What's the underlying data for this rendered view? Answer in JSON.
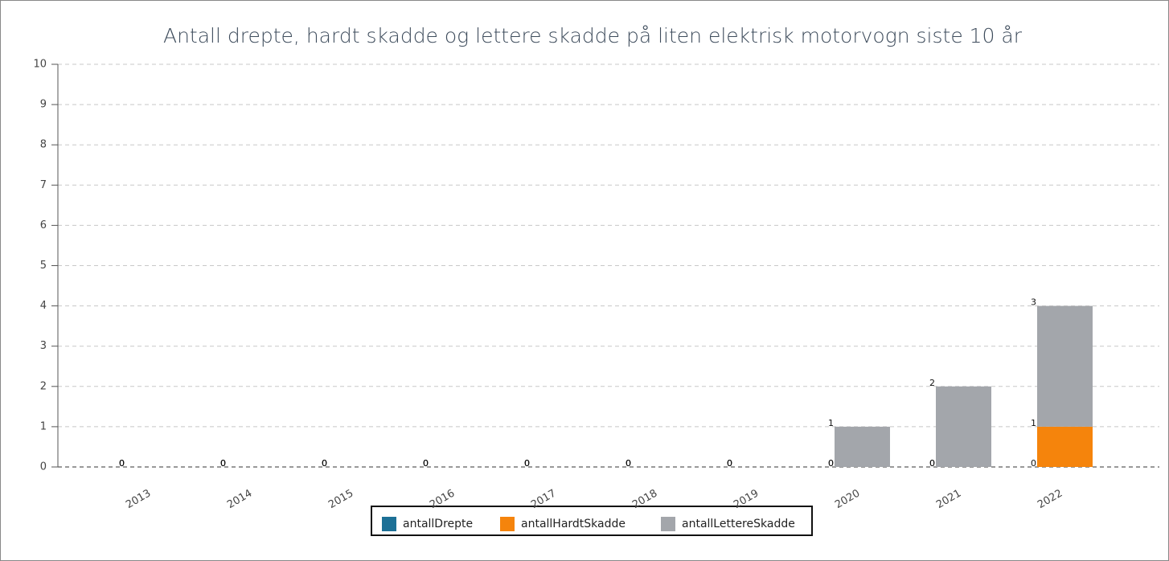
{
  "chart_data": {
    "type": "stacked_bar",
    "title": "Antall drepte, hardt skadde og lettere skadde på liten elektrisk motorvogn siste 10 år",
    "categories": [
      "2013",
      "2014",
      "2015",
      "2016",
      "2017",
      "2018",
      "2019",
      "2020",
      "2021",
      "2022"
    ],
    "series": [
      {
        "name": "antallDrepte",
        "color": "#1c7096",
        "values": [
          0,
          0,
          0,
          0,
          0,
          0,
          0,
          0,
          0,
          0
        ]
      },
      {
        "name": "antallHardtSkadde",
        "color": "#f5840c",
        "values": [
          0,
          0,
          0,
          0,
          0,
          0,
          0,
          0,
          0,
          1
        ]
      },
      {
        "name": "antallLettereSkadde",
        "color": "#a3a6ab",
        "values": [
          0,
          0,
          0,
          0,
          0,
          0,
          0,
          1,
          2,
          3
        ]
      }
    ],
    "ylim": [
      0,
      10
    ],
    "yticks": [
      0,
      1,
      2,
      3,
      4,
      5,
      6,
      7,
      8,
      9,
      10
    ],
    "grid": true,
    "legend": "bottom"
  }
}
